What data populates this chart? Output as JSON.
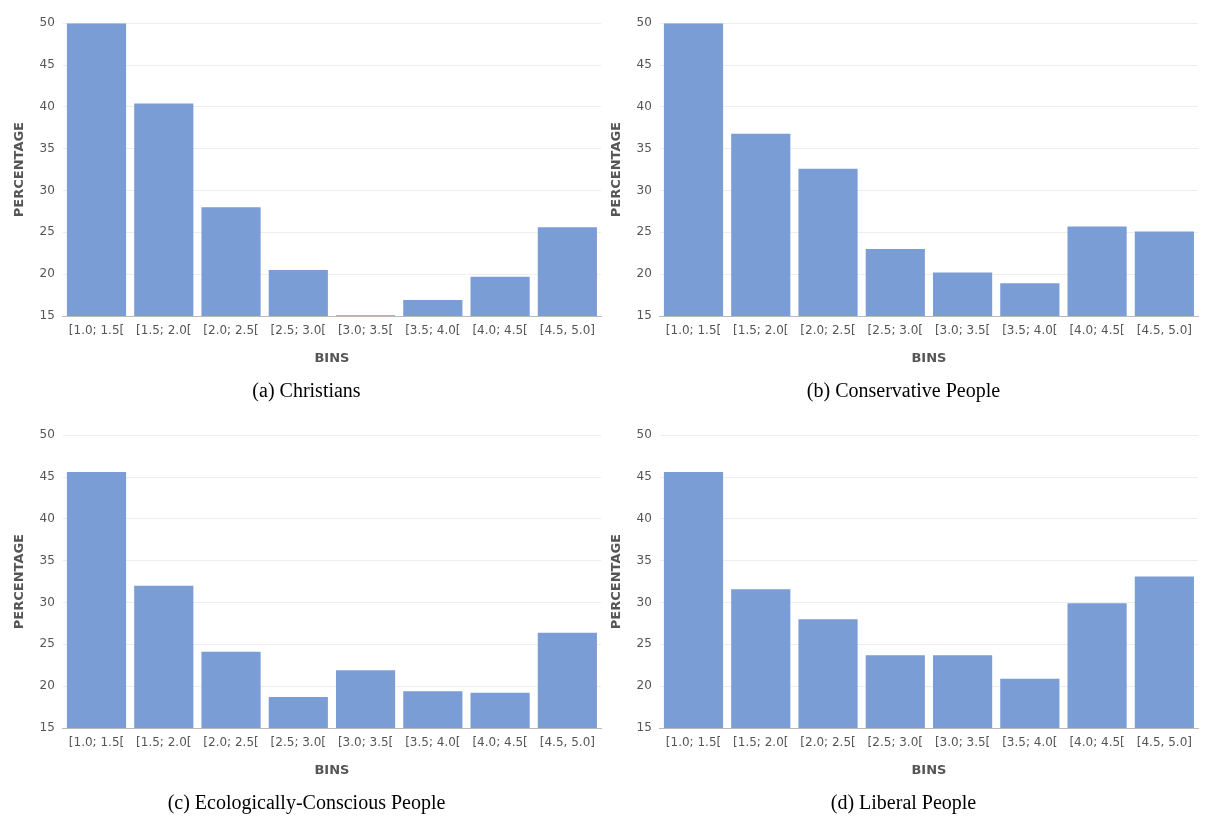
{
  "chart_data": [
    {
      "type": "bar",
      "title": "(a) Christians",
      "xlabel": "BINS",
      "ylabel": "PERCENTAGE",
      "categories": [
        "[1.0; 1.5[",
        "[1.5; 2.0[",
        "[2.0; 2.5[",
        "[2.5; 3.0[",
        "[3.0; 3.5[",
        "[3.5; 4.0[",
        "[4.0; 4.5[",
        "[4.5, 5.0]"
      ],
      "values": [
        50,
        40.4,
        28,
        20.5,
        15.1,
        16.9,
        19.7,
        25.6
      ],
      "color": "#7b9dd6",
      "ylim": [
        15,
        50
      ],
      "yticks": [
        15,
        20,
        25,
        30,
        35,
        40,
        45,
        50
      ],
      "grid": "y"
    },
    {
      "type": "bar",
      "title": "(b) Conservative People",
      "xlabel": "BINS",
      "ylabel": "PERCENTAGE",
      "categories": [
        "[1.0; 1.5[",
        "[1.5; 2.0[",
        "[2.0; 2.5[",
        "[2.5; 3.0[",
        "[3.0; 3.5[",
        "[3.5; 4.0[",
        "[4.0; 4.5[",
        "[4.5, 5.0]"
      ],
      "values": [
        50,
        36.8,
        32.6,
        23,
        20.2,
        18.9,
        25.7,
        25.1
      ],
      "color": "#7b9dd6",
      "ylim": [
        15,
        50
      ],
      "yticks": [
        15,
        20,
        25,
        30,
        35,
        40,
        45,
        50
      ],
      "grid": "y"
    },
    {
      "type": "bar",
      "title": "(c) Ecologically-Conscious People",
      "xlabel": "BINS",
      "ylabel": "PERCENTAGE",
      "categories": [
        "[1.0; 1.5[",
        "[1.5; 2.0[",
        "[2.0; 2.5[",
        "[2.5; 3.0[",
        "[3.0; 3.5[",
        "[3.5; 4.0[",
        "[4.0; 4.5[",
        "[4.5, 5.0]"
      ],
      "values": [
        45.6,
        32,
        24.1,
        18.7,
        21.9,
        19.4,
        19.2,
        26.4
      ],
      "color": "#7b9dd6",
      "ylim": [
        15,
        50
      ],
      "yticks": [
        15,
        20,
        25,
        30,
        35,
        40,
        45,
        50
      ],
      "grid": "y"
    },
    {
      "type": "bar",
      "title": "(d) Liberal People",
      "xlabel": "BINS",
      "ylabel": "PERCENTAGE",
      "categories": [
        "[1.0; 1.5[",
        "[1.5; 2.0[",
        "[2.0; 2.5[",
        "[2.5; 3.0[",
        "[3.0; 3.5[",
        "[3.5; 4.0[",
        "[4.0; 4.5[",
        "[4.5, 5.0]"
      ],
      "values": [
        45.6,
        31.6,
        28,
        23.7,
        23.7,
        20.9,
        29.9,
        33.1
      ],
      "color": "#7b9dd6",
      "ylim": [
        15,
        50
      ],
      "yticks": [
        15,
        20,
        25,
        30,
        35,
        40,
        45,
        50
      ],
      "grid": "y"
    }
  ]
}
